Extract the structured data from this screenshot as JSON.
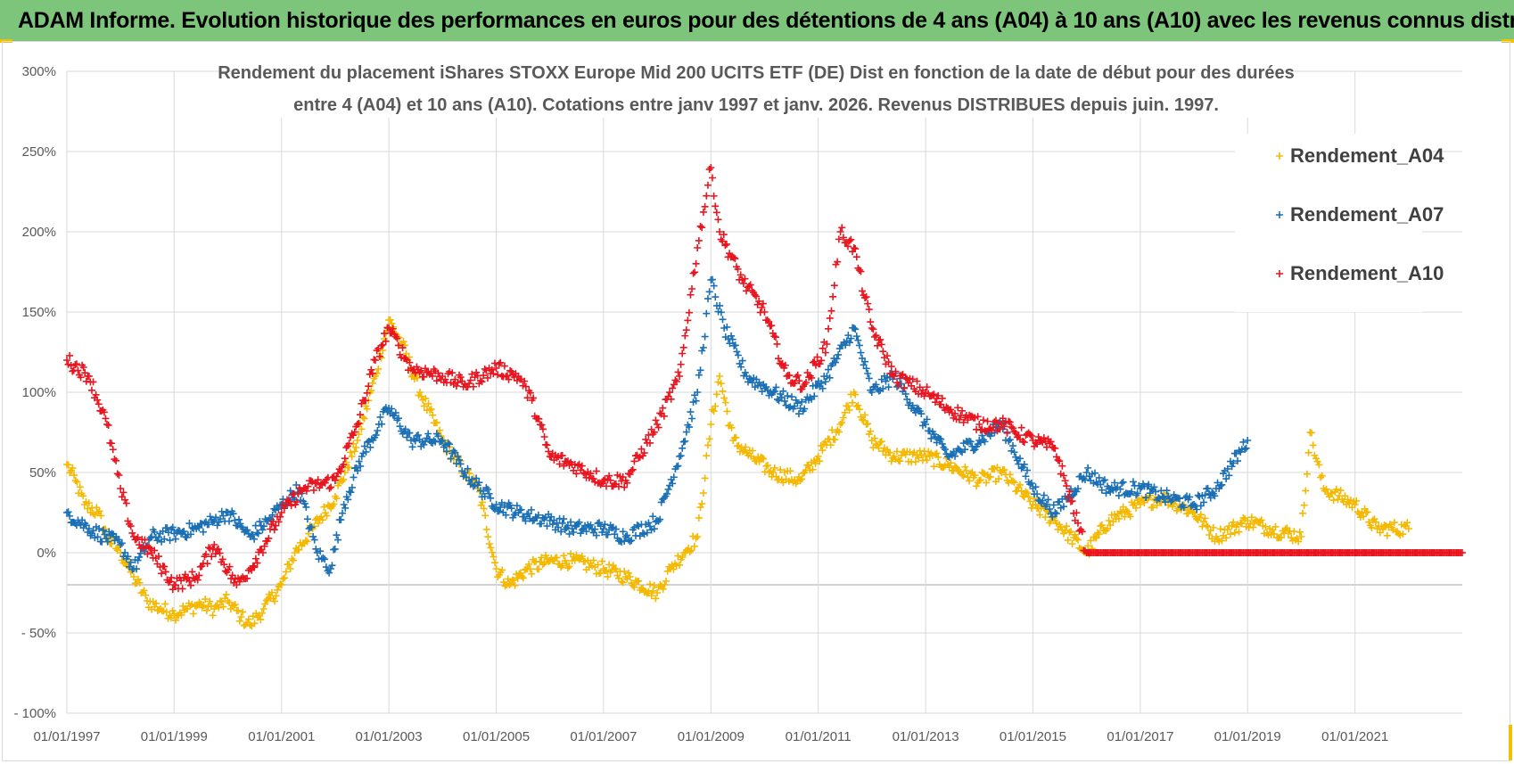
{
  "header": {
    "title": "ADAM Informe. Evolution historique des performances en euros pour des détentions de 4 ans (A04) à 10 ans (A10) avec les revenus connus distribués"
  },
  "colors": {
    "banner": "#7dc57a",
    "accent": "#f2c200",
    "grid": "#d9d9d9",
    "text": "#595959"
  },
  "chart_data": {
    "type": "scatter",
    "title": "",
    "subtitle_lines": [
      "Rendement du placement iShares STOXX Europe Mid 200 UCITS ETF (DE) Dist en fonction de la date de début pour des durées",
      "entre 4 (A04) et 10 ans (A10).  Cotations entre janv 1997 et janv. 2026. Revenus DISTRIBUES depuis juin. 1997."
    ],
    "xlabel": "",
    "ylabel": "",
    "x_axis": {
      "type": "date",
      "range": [
        "1997-01-01",
        "2023-01-01"
      ],
      "tick_labels": [
        "01/01/1997",
        "01/01/1999",
        "01/01/2001",
        "01/01/2003",
        "01/01/2005",
        "01/01/2007",
        "01/01/2009",
        "01/01/2011",
        "01/01/2013",
        "01/01/2015",
        "01/01/2017",
        "01/01/2019",
        "01/01/2021"
      ]
    },
    "y_axis": {
      "range": [
        -100,
        300
      ],
      "ticks": [
        -100,
        -50,
        0,
        50,
        100,
        150,
        200,
        250,
        300
      ],
      "tick_labels": [
        "- 100%",
        "- 50%",
        "0%",
        "50%",
        "100%",
        "150%",
        "200%",
        "250%",
        "300%"
      ]
    },
    "grid": true,
    "legend_position": "top-right",
    "marker": "+",
    "series": [
      {
        "name": "Rendement_A04",
        "color": "#f5b800",
        "points": [
          [
            "1997-01-01",
            55
          ],
          [
            "1997-03-01",
            45
          ],
          [
            "1997-05-01",
            30
          ],
          [
            "1997-08-01",
            25
          ],
          [
            "1997-10-01",
            10
          ],
          [
            "1998-01-01",
            0
          ],
          [
            "1998-04-01",
            -15
          ],
          [
            "1998-07-01",
            -30
          ],
          [
            "1998-10-01",
            -35
          ],
          [
            "1999-01-01",
            -38
          ],
          [
            "1999-04-01",
            -35
          ],
          [
            "1999-07-01",
            -32
          ],
          [
            "1999-10-01",
            -35
          ],
          [
            "2000-01-01",
            -30
          ],
          [
            "2000-04-01",
            -40
          ],
          [
            "2000-06-01",
            -45
          ],
          [
            "2000-09-01",
            -35
          ],
          [
            "2001-01-01",
            -20
          ],
          [
            "2001-04-01",
            0
          ],
          [
            "2001-08-01",
            15
          ],
          [
            "2002-01-01",
            35
          ],
          [
            "2002-06-01",
            70
          ],
          [
            "2002-10-01",
            110
          ],
          [
            "2003-01-01",
            145
          ],
          [
            "2003-04-01",
            130
          ],
          [
            "2003-08-01",
            100
          ],
          [
            "2004-01-01",
            70
          ],
          [
            "2004-06-01",
            50
          ],
          [
            "2004-09-01",
            40
          ],
          [
            "2005-01-01",
            -10
          ],
          [
            "2005-04-01",
            -20
          ],
          [
            "2005-08-01",
            -10
          ],
          [
            "2006-01-01",
            -5
          ],
          [
            "2006-06-01",
            -5
          ],
          [
            "2007-01-01",
            -10
          ],
          [
            "2007-06-01",
            -15
          ],
          [
            "2008-01-01",
            -25
          ],
          [
            "2008-04-01",
            -10
          ],
          [
            "2008-07-01",
            0
          ],
          [
            "2008-10-01",
            10
          ],
          [
            "2009-01-01",
            80
          ],
          [
            "2009-03-01",
            110
          ],
          [
            "2009-06-01",
            70
          ],
          [
            "2009-10-01",
            60
          ],
          [
            "2010-03-01",
            50
          ],
          [
            "2010-09-01",
            45
          ],
          [
            "2011-01-01",
            60
          ],
          [
            "2011-06-01",
            80
          ],
          [
            "2011-09-01",
            100
          ],
          [
            "2012-01-01",
            70
          ],
          [
            "2012-06-01",
            60
          ],
          [
            "2013-01-01",
            60
          ],
          [
            "2013-06-01",
            55
          ],
          [
            "2014-01-01",
            45
          ],
          [
            "2014-06-01",
            50
          ],
          [
            "2015-01-01",
            30
          ],
          [
            "2015-06-01",
            20
          ],
          [
            "2016-01-01",
            0
          ],
          [
            "2016-06-01",
            20
          ],
          [
            "2017-01-01",
            30
          ],
          [
            "2017-06-01",
            35
          ],
          [
            "2018-01-01",
            25
          ],
          [
            "2018-06-01",
            10
          ],
          [
            "2019-01-01",
            20
          ],
          [
            "2019-06-01",
            15
          ],
          [
            "2020-01-01",
            10
          ],
          [
            "2020-03-01",
            75
          ],
          [
            "2020-06-01",
            40
          ],
          [
            "2021-01-01",
            30
          ],
          [
            "2021-06-01",
            15
          ],
          [
            "2022-01-01",
            15
          ]
        ]
      },
      {
        "name": "Rendement_A07",
        "color": "#1a6fb5",
        "points": [
          [
            "1997-01-01",
            25
          ],
          [
            "1997-06-01",
            15
          ],
          [
            "1998-01-01",
            5
          ],
          [
            "1998-04-01",
            -10
          ],
          [
            "1998-08-01",
            10
          ],
          [
            "1999-01-01",
            12
          ],
          [
            "1999-06-01",
            15
          ],
          [
            "1999-10-01",
            20
          ],
          [
            "2000-01-01",
            25
          ],
          [
            "2000-06-01",
            10
          ],
          [
            "2000-10-01",
            20
          ],
          [
            "2001-01-01",
            30
          ],
          [
            "2001-05-01",
            40
          ],
          [
            "2001-09-01",
            0
          ],
          [
            "2001-12-01",
            -10
          ],
          [
            "2002-03-01",
            30
          ],
          [
            "2002-07-01",
            60
          ],
          [
            "2003-01-01",
            90
          ],
          [
            "2003-06-01",
            70
          ],
          [
            "2004-01-01",
            70
          ],
          [
            "2004-06-01",
            50
          ],
          [
            "2005-01-01",
            30
          ],
          [
            "2005-06-01",
            25
          ],
          [
            "2006-01-01",
            20
          ],
          [
            "2006-06-01",
            15
          ],
          [
            "2007-01-01",
            15
          ],
          [
            "2007-06-01",
            10
          ],
          [
            "2008-01-01",
            20
          ],
          [
            "2008-06-01",
            60
          ],
          [
            "2008-10-01",
            100
          ],
          [
            "2009-01-01",
            170
          ],
          [
            "2009-04-01",
            140
          ],
          [
            "2009-09-01",
            110
          ],
          [
            "2010-03-01",
            100
          ],
          [
            "2010-09-01",
            90
          ],
          [
            "2011-03-01",
            110
          ],
          [
            "2011-09-01",
            140
          ],
          [
            "2012-01-01",
            100
          ],
          [
            "2012-06-01",
            110
          ],
          [
            "2013-01-01",
            80
          ],
          [
            "2013-06-01",
            60
          ],
          [
            "2014-01-01",
            70
          ],
          [
            "2014-06-01",
            80
          ],
          [
            "2015-01-01",
            40
          ],
          [
            "2015-06-01",
            25
          ],
          [
            "2016-01-01",
            50
          ],
          [
            "2016-06-01",
            40
          ],
          [
            "2017-01-01",
            40
          ],
          [
            "2017-06-01",
            35
          ],
          [
            "2018-01-01",
            30
          ],
          [
            "2018-06-01",
            40
          ],
          [
            "2019-01-01",
            70
          ]
        ]
      },
      {
        "name": "Rendement_A10",
        "color": "#e8151f",
        "points": [
          [
            "1997-01-01",
            120
          ],
          [
            "1997-06-01",
            110
          ],
          [
            "1997-10-01",
            80
          ],
          [
            "1998-01-01",
            40
          ],
          [
            "1998-04-01",
            10
          ],
          [
            "1998-08-01",
            0
          ],
          [
            "1999-01-01",
            -20
          ],
          [
            "1999-06-01",
            -15
          ],
          [
            "1999-10-01",
            5
          ],
          [
            "2000-03-01",
            -20
          ],
          [
            "2000-06-01",
            -10
          ],
          [
            "2001-01-01",
            25
          ],
          [
            "2001-06-01",
            40
          ],
          [
            "2002-01-01",
            45
          ],
          [
            "2002-06-01",
            80
          ],
          [
            "2002-10-01",
            120
          ],
          [
            "2003-01-01",
            140
          ],
          [
            "2003-06-01",
            115
          ],
          [
            "2004-01-01",
            110
          ],
          [
            "2004-06-01",
            105
          ],
          [
            "2005-01-01",
            115
          ],
          [
            "2005-06-01",
            110
          ],
          [
            "2005-09-01",
            95
          ],
          [
            "2006-01-01",
            60
          ],
          [
            "2006-06-01",
            55
          ],
          [
            "2007-01-01",
            45
          ],
          [
            "2007-06-01",
            45
          ],
          [
            "2008-01-01",
            80
          ],
          [
            "2008-06-01",
            110
          ],
          [
            "2008-10-01",
            190
          ],
          [
            "2009-01-01",
            240
          ],
          [
            "2009-03-01",
            200
          ],
          [
            "2009-08-01",
            170
          ],
          [
            "2010-01-01",
            150
          ],
          [
            "2010-06-01",
            110
          ],
          [
            "2010-10-01",
            105
          ],
          [
            "2011-03-01",
            130
          ],
          [
            "2011-06-01",
            200
          ],
          [
            "2011-09-01",
            190
          ],
          [
            "2012-01-01",
            140
          ],
          [
            "2012-06-01",
            110
          ],
          [
            "2013-01-01",
            100
          ],
          [
            "2013-06-01",
            90
          ],
          [
            "2014-01-01",
            80
          ],
          [
            "2014-06-01",
            80
          ],
          [
            "2015-01-01",
            70
          ],
          [
            "2015-06-01",
            65
          ],
          [
            "2016-01-01",
            0
          ],
          [
            "2017-01-01",
            0
          ],
          [
            "2018-01-01",
            0
          ],
          [
            "2019-01-01",
            0
          ],
          [
            "2020-01-01",
            0
          ],
          [
            "2021-01-01",
            0
          ],
          [
            "2022-01-01",
            0
          ],
          [
            "2023-01-01",
            0
          ]
        ]
      }
    ]
  }
}
